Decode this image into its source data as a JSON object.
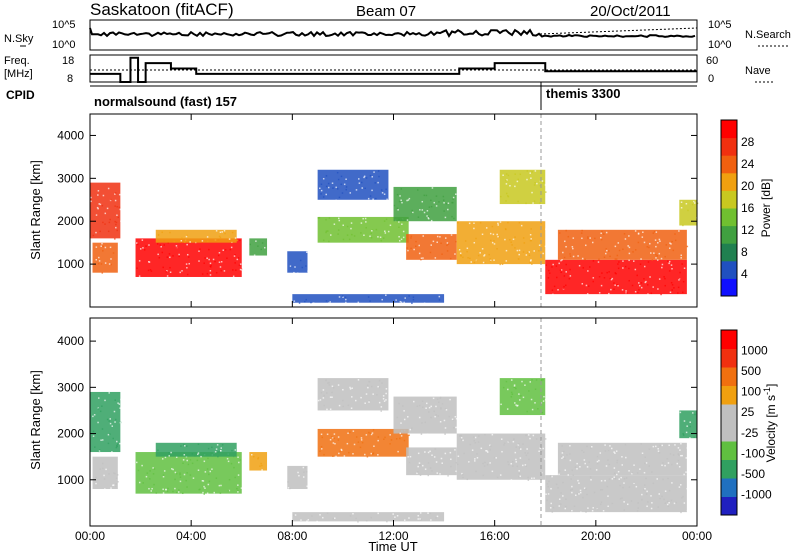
{
  "header": {
    "title": "Saskatoon (fitACF)",
    "beam": "Beam 07",
    "date": "20/Oct/2011"
  },
  "top_panels": {
    "nsky_label": "N.Sky",
    "nsky_ticks": [
      "10^5",
      "10^0"
    ],
    "nsearch_ticks": [
      "10^5",
      "10^0"
    ],
    "nsearch_label": "N.Search",
    "freq_label_1": "Freq.",
    "freq_label_2": "[MHz]",
    "freq_ticks": [
      "18",
      "8"
    ],
    "nave_ticks": [
      "60",
      "0"
    ],
    "nave_label": "Nave",
    "cpid_label": "CPID",
    "cpid_1": "normalsound (fast) 157",
    "cpid_2": "themis 3300"
  },
  "power_panel": {
    "ylabel": "Slant Range [km]",
    "yticks": [
      "1000",
      "2000",
      "3000",
      "4000"
    ],
    "cbar_label": "Power [dB]",
    "cbar_ticks": [
      "4",
      "8",
      "12",
      "16",
      "20",
      "24",
      "28"
    ],
    "cbar_colors": [
      "#1010ff",
      "#2050c0",
      "#208050",
      "#40a040",
      "#70c030",
      "#c8c820",
      "#f0a010",
      "#f06010",
      "#f03010",
      "#ff0000"
    ]
  },
  "velocity_panel": {
    "ylabel": "Slant Range [km]",
    "yticks": [
      "1000",
      "2000",
      "3000",
      "4000"
    ],
    "cbar_label": "Velocity [m s",
    "cbar_label_sup": "-1",
    "cbar_label_end": "]",
    "cbar_ticks": [
      "1000",
      "500",
      "100",
      "25",
      "-25",
      "-100",
      "-500",
      "-1000"
    ],
    "cbar_colors": [
      "#2020c0",
      "#2070c0",
      "#30a060",
      "#60c040",
      "#c0c0c0",
      "#c0c0c0",
      "#f0a010",
      "#f07010",
      "#f03010",
      "#ff0000"
    ]
  },
  "xaxis": {
    "ticks": [
      "00:00",
      "04:00",
      "08:00",
      "12:00",
      "16:00",
      "20:00",
      "00:00"
    ],
    "label": "Time UT"
  },
  "chart_data": {
    "type": "heatmap",
    "x_range": [
      "00:00",
      "24:00"
    ],
    "y_range": [
      0,
      4500
    ],
    "cpid_switch_hour": 18,
    "power_regions": [
      {
        "t0": 0.0,
        "t1": 1.2,
        "r0": 1600,
        "r1": 2900,
        "c": "#f03010"
      },
      {
        "t0": 0.1,
        "t1": 1.1,
        "r0": 800,
        "r1": 1500,
        "c": "#f06010"
      },
      {
        "t0": 1.8,
        "t1": 6.0,
        "r0": 700,
        "r1": 1600,
        "c": "#ff0000"
      },
      {
        "t0": 2.6,
        "t1": 5.8,
        "r0": 1500,
        "r1": 1800,
        "c": "#f0a010"
      },
      {
        "t0": 6.3,
        "t1": 7.0,
        "r0": 1200,
        "r1": 1600,
        "c": "#40a040"
      },
      {
        "t0": 7.8,
        "t1": 8.6,
        "r0": 800,
        "r1": 1300,
        "c": "#2050c0"
      },
      {
        "t0": 9.0,
        "t1": 12.6,
        "r0": 1500,
        "r1": 2100,
        "c": "#70c030"
      },
      {
        "t0": 9.0,
        "t1": 11.8,
        "r0": 2500,
        "r1": 3200,
        "c": "#2050c0"
      },
      {
        "t0": 12.0,
        "t1": 14.5,
        "r0": 2000,
        "r1": 2800,
        "c": "#40a040"
      },
      {
        "t0": 12.5,
        "t1": 14.5,
        "r0": 1100,
        "r1": 1700,
        "c": "#f06010"
      },
      {
        "t0": 14.5,
        "t1": 18.0,
        "r0": 1000,
        "r1": 2000,
        "c": "#f0a010"
      },
      {
        "t0": 16.2,
        "t1": 18.0,
        "r0": 2400,
        "r1": 3200,
        "c": "#c8c820"
      },
      {
        "t0": 18.0,
        "t1": 23.6,
        "r0": 300,
        "r1": 1100,
        "c": "#ff0000"
      },
      {
        "t0": 18.5,
        "t1": 23.6,
        "r0": 1100,
        "r1": 1800,
        "c": "#f06010"
      },
      {
        "t0": 23.3,
        "t1": 24.0,
        "r0": 1900,
        "r1": 2500,
        "c": "#c8c820"
      },
      {
        "t0": 8.0,
        "t1": 14.0,
        "r0": 100,
        "r1": 300,
        "c": "#2050c0"
      }
    ],
    "velocity_regions": [
      {
        "t0": 0.0,
        "t1": 1.2,
        "r0": 1600,
        "r1": 2900,
        "c": "#30a060"
      },
      {
        "t0": 0.1,
        "t1": 1.1,
        "r0": 800,
        "r1": 1500,
        "c": "#c0c0c0"
      },
      {
        "t0": 1.8,
        "t1": 6.0,
        "r0": 700,
        "r1": 1600,
        "c": "#60c040"
      },
      {
        "t0": 2.6,
        "t1": 5.8,
        "r0": 1500,
        "r1": 1800,
        "c": "#30a060"
      },
      {
        "t0": 6.3,
        "t1": 7.0,
        "r0": 1200,
        "r1": 1600,
        "c": "#f0a010"
      },
      {
        "t0": 7.8,
        "t1": 8.6,
        "r0": 800,
        "r1": 1300,
        "c": "#c0c0c0"
      },
      {
        "t0": 9.0,
        "t1": 12.6,
        "r0": 1500,
        "r1": 2100,
        "c": "#f07010"
      },
      {
        "t0": 9.0,
        "t1": 11.8,
        "r0": 2500,
        "r1": 3200,
        "c": "#c0c0c0"
      },
      {
        "t0": 12.0,
        "t1": 14.5,
        "r0": 2000,
        "r1": 2800,
        "c": "#c0c0c0"
      },
      {
        "t0": 12.5,
        "t1": 14.5,
        "r0": 1100,
        "r1": 1700,
        "c": "#c0c0c0"
      },
      {
        "t0": 14.5,
        "t1": 18.0,
        "r0": 1000,
        "r1": 2000,
        "c": "#c0c0c0"
      },
      {
        "t0": 16.2,
        "t1": 18.0,
        "r0": 2400,
        "r1": 3200,
        "c": "#60c040"
      },
      {
        "t0": 18.0,
        "t1": 23.6,
        "r0": 300,
        "r1": 1100,
        "c": "#c0c0c0"
      },
      {
        "t0": 18.5,
        "t1": 23.6,
        "r0": 1100,
        "r1": 1800,
        "c": "#c0c0c0"
      },
      {
        "t0": 23.3,
        "t1": 24.0,
        "r0": 1900,
        "r1": 2500,
        "c": "#30a060"
      },
      {
        "t0": 8.0,
        "t1": 14.0,
        "r0": 100,
        "r1": 300,
        "c": "#c0c0c0"
      }
    ],
    "frequency_mhz": [
      {
        "t0": 0.0,
        "t1": 1.2,
        "v": 11
      },
      {
        "t0": 1.2,
        "t1": 1.6,
        "v": 8
      },
      {
        "t0": 1.6,
        "t1": 1.9,
        "v": 17
      },
      {
        "t0": 1.9,
        "t1": 2.2,
        "v": 8
      },
      {
        "t0": 2.2,
        "t1": 3.2,
        "v": 15
      },
      {
        "t0": 3.2,
        "t1": 4.2,
        "v": 13
      },
      {
        "t0": 4.2,
        "t1": 14.6,
        "v": 11
      },
      {
        "t0": 14.6,
        "t1": 16.0,
        "v": 13
      },
      {
        "t0": 16.0,
        "t1": 18.0,
        "v": 15
      },
      {
        "t0": 18.0,
        "t1": 24.0,
        "v": 12
      }
    ]
  }
}
